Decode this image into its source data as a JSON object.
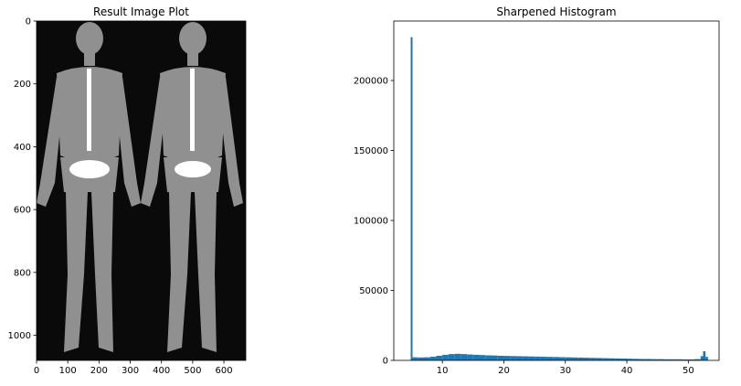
{
  "chart_data": [
    {
      "type": "image",
      "title": "Result Image Plot",
      "xlim": [
        0,
        670
      ],
      "ylim": [
        1080,
        0
      ],
      "xticks": [
        0,
        100,
        200,
        300,
        400,
        500,
        600
      ],
      "yticks": [
        0,
        200,
        400,
        600,
        800,
        1000
      ]
    },
    {
      "type": "histogram",
      "title": "Sharpened Histogram",
      "color": "#1f77b4",
      "bins": [
        4.85,
        5.15,
        6,
        7,
        8,
        9,
        10,
        11,
        12,
        13,
        14,
        15,
        16,
        17,
        18,
        19,
        20,
        21,
        22,
        23,
        24,
        25,
        26,
        27,
        28,
        29,
        30,
        31,
        32,
        33,
        34,
        35,
        36,
        37,
        38,
        39,
        40,
        41,
        42,
        43,
        44,
        45,
        46,
        47,
        48,
        49,
        50,
        51,
        52,
        52.4,
        52.8,
        53.2
      ],
      "values": [
        231000,
        2200,
        2100,
        2200,
        2600,
        3300,
        4000,
        4500,
        4700,
        4500,
        4200,
        4000,
        3800,
        3600,
        3500,
        3300,
        3200,
        3100,
        3000,
        2900,
        2800,
        2700,
        2600,
        2500,
        2400,
        2300,
        2200,
        2100,
        2000,
        1900,
        1800,
        1700,
        1600,
        1500,
        1400,
        1300,
        1200,
        1100,
        1000,
        1000,
        900,
        900,
        800,
        800,
        800,
        700,
        700,
        900,
        3000,
        6500,
        2500
      ],
      "xlim": [
        2.1,
        55.0
      ],
      "ylim": [
        0,
        242500
      ],
      "xticks": [
        10,
        20,
        30,
        40,
        50
      ],
      "yticks": [
        0,
        50000,
        100000,
        150000,
        200000
      ]
    }
  ]
}
